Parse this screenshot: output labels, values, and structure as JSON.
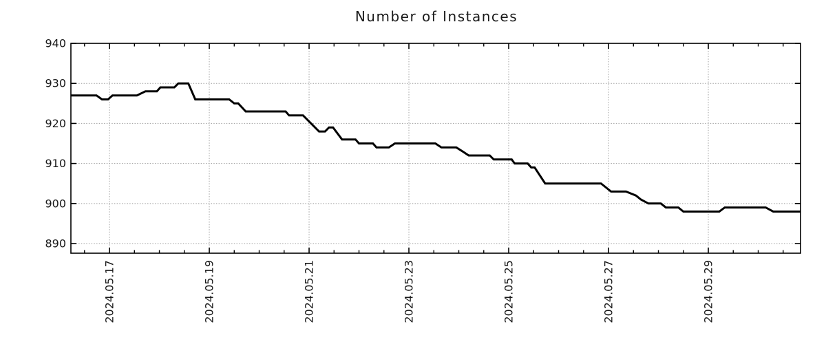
{
  "page": {
    "background_color": "#ffffff"
  },
  "chart_data": {
    "type": "line",
    "title": "Number of Instances",
    "legend_position": "none",
    "grid": {
      "show": true,
      "style": "dotted",
      "color": "#9e9e9e"
    },
    "frame_color": "#000000",
    "x_axis": {
      "kind": "date",
      "range_days": [
        16.227,
        30.848
      ],
      "minor_tick_step_days": 0.5,
      "tick_label_rotation_deg": -90,
      "major_ticks": [
        {
          "value": 17,
          "label": "2024.05.17"
        },
        {
          "value": 19,
          "label": "2024.05.19"
        },
        {
          "value": 21,
          "label": "2024.05.21"
        },
        {
          "value": 23,
          "label": "2024.05.23"
        },
        {
          "value": 25,
          "label": "2024.05.25"
        },
        {
          "value": 27,
          "label": "2024.05.27"
        },
        {
          "value": 29,
          "label": "2024.05.29"
        }
      ]
    },
    "y_axis": {
      "range": [
        887.6,
        940
      ],
      "major_ticks": [
        {
          "value": 890,
          "label": "890"
        },
        {
          "value": 900,
          "label": "900"
        },
        {
          "value": 910,
          "label": "910"
        },
        {
          "value": 920,
          "label": "920"
        },
        {
          "value": 930,
          "label": "930"
        },
        {
          "value": 940,
          "label": "940"
        }
      ]
    },
    "series": [
      {
        "name": "instances",
        "color": "#000000",
        "line_width": 3,
        "points_day_value": [
          [
            16.23,
            927
          ],
          [
            16.74,
            927
          ],
          [
            16.85,
            926
          ],
          [
            16.97,
            926
          ],
          [
            17.06,
            927
          ],
          [
            17.55,
            927
          ],
          [
            17.72,
            928
          ],
          [
            17.95,
            928
          ],
          [
            18.02,
            929
          ],
          [
            18.3,
            929
          ],
          [
            18.38,
            930
          ],
          [
            18.58,
            930
          ],
          [
            18.72,
            926
          ],
          [
            19.4,
            926
          ],
          [
            19.5,
            925
          ],
          [
            19.58,
            925
          ],
          [
            19.73,
            923
          ],
          [
            20.53,
            923
          ],
          [
            20.6,
            922
          ],
          [
            20.88,
            922
          ],
          [
            21.2,
            918
          ],
          [
            21.32,
            918
          ],
          [
            21.4,
            919
          ],
          [
            21.48,
            919
          ],
          [
            21.66,
            916
          ],
          [
            21.93,
            916
          ],
          [
            22.0,
            915
          ],
          [
            22.28,
            915
          ],
          [
            22.35,
            914
          ],
          [
            22.6,
            914
          ],
          [
            22.72,
            915
          ],
          [
            23.53,
            915
          ],
          [
            23.65,
            914
          ],
          [
            23.95,
            914
          ],
          [
            24.08,
            913
          ],
          [
            24.2,
            912
          ],
          [
            24.62,
            912
          ],
          [
            24.7,
            911
          ],
          [
            25.06,
            911
          ],
          [
            25.12,
            910
          ],
          [
            25.38,
            910
          ],
          [
            25.45,
            909
          ],
          [
            25.52,
            909
          ],
          [
            25.73,
            905
          ],
          [
            26.85,
            905
          ],
          [
            26.95,
            904
          ],
          [
            27.05,
            903
          ],
          [
            27.35,
            903
          ],
          [
            27.55,
            902
          ],
          [
            27.65,
            901
          ],
          [
            27.8,
            900
          ],
          [
            28.05,
            900
          ],
          [
            28.15,
            899
          ],
          [
            28.4,
            899
          ],
          [
            28.5,
            898
          ],
          [
            29.22,
            898
          ],
          [
            29.33,
            899
          ],
          [
            30.15,
            899
          ],
          [
            30.3,
            898
          ],
          [
            30.85,
            898
          ]
        ]
      }
    ]
  }
}
